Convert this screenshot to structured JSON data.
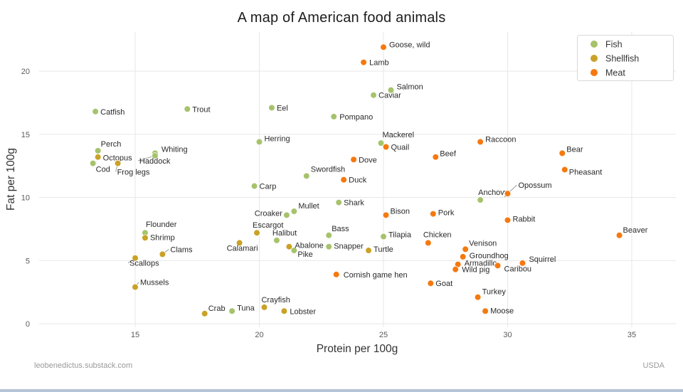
{
  "footer": {
    "left": "leobenedictus.substack.com",
    "right": "USDA"
  },
  "chart_data": {
    "type": "scatter",
    "title": "A map of American food animals",
    "xlabel": "Protein per 100g",
    "ylabel": "Fat per 100g",
    "x_ticks": [
      15,
      20,
      25,
      30,
      35
    ],
    "y_ticks": [
      0,
      5,
      10,
      15,
      20
    ],
    "xlim": [
      11.1,
      36.8
    ],
    "ylim": [
      0,
      23.1
    ],
    "grid": true,
    "legend_position": "top-right",
    "series": [
      {
        "name": "Fish",
        "color": "#a6c36c",
        "points": [
          {
            "label": "Catfish",
            "x": 13.4,
            "y": 16.8,
            "dx": 7,
            "dy": 4
          },
          {
            "label": "Perch",
            "x": 13.5,
            "y": 13.7,
            "dx": 4,
            "dy": -6
          },
          {
            "label": "Cod",
            "x": 13.3,
            "y": 12.7,
            "dx": 4,
            "dy": 12
          },
          {
            "label": "Whiting",
            "x": 15.8,
            "y": 13.5,
            "dx": 9,
            "dy": -2
          },
          {
            "label": "Haddock",
            "x": 15.8,
            "y": 13.3,
            "dx": -22,
            "dy": 11,
            "leader": true
          },
          {
            "label": "Trout",
            "x": 17.1,
            "y": 17.0,
            "dx": 7,
            "dy": 4
          },
          {
            "label": "Eel",
            "x": 20.5,
            "y": 17.1,
            "dx": 7,
            "dy": 4
          },
          {
            "label": "Pompano",
            "x": 23.0,
            "y": 16.4,
            "dx": 8,
            "dy": 4
          },
          {
            "label": "Caviar",
            "x": 24.6,
            "y": 18.1,
            "dx": 7,
            "dy": 4
          },
          {
            "label": "Salmon",
            "x": 25.3,
            "y": 18.5,
            "dx": 8,
            "dy": -1
          },
          {
            "label": "Herring",
            "x": 20.0,
            "y": 14.4,
            "dx": 7,
            "dy": -1
          },
          {
            "label": "Mackerel",
            "x": 24.9,
            "y": 14.3,
            "dx": 2,
            "dy": -8
          },
          {
            "label": "Carp",
            "x": 19.8,
            "y": 10.9,
            "dx": 7,
            "dy": 4
          },
          {
            "label": "Swordfish",
            "x": 21.9,
            "y": 11.7,
            "dx": 6,
            "dy": -6
          },
          {
            "label": "Shark",
            "x": 23.2,
            "y": 9.6,
            "dx": 7,
            "dy": 4
          },
          {
            "label": "Mullet",
            "x": 21.4,
            "y": 8.9,
            "dx": 6,
            "dy": -4
          },
          {
            "label": "Croaker",
            "x": 21.1,
            "y": 8.6,
            "dx": -6,
            "dy": 1,
            "anchor": "end"
          },
          {
            "label": "Flounder",
            "x": 15.4,
            "y": 7.2,
            "dx": 1,
            "dy": -8
          },
          {
            "label": "Bass",
            "x": 22.8,
            "y": 7.0,
            "dx": 4,
            "dy": -6
          },
          {
            "label": "Halibut",
            "x": 20.7,
            "y": 6.6,
            "dx": -6,
            "dy": -7
          },
          {
            "label": "Snapper",
            "x": 22.8,
            "y": 6.1,
            "dx": 7,
            "dy": 3
          },
          {
            "label": "Tilapia",
            "x": 25.0,
            "y": 6.9,
            "dx": 7,
            "dy": 1
          },
          {
            "label": "Pike",
            "x": 21.4,
            "y": 5.8,
            "dx": 5,
            "dy": 9
          },
          {
            "label": "Tuna",
            "x": 18.9,
            "y": 1.0,
            "dx": 7,
            "dy": -1
          },
          {
            "label": "Anchovy",
            "x": 28.9,
            "y": 9.8,
            "dx": -3,
            "dy": -7
          }
        ]
      },
      {
        "name": "Shellfish",
        "color": "#c9a227",
        "points": [
          {
            "label": "Octopus",
            "x": 13.5,
            "y": 13.2,
            "dx": 7,
            "dy": 5
          },
          {
            "label": "Frog legs",
            "x": 14.3,
            "y": 12.7,
            "dx": -1,
            "dy": 16,
            "leader": true
          },
          {
            "label": "Shrimp",
            "x": 15.4,
            "y": 6.8,
            "dx": 7,
            "dy": 3
          },
          {
            "label": "Clams",
            "x": 16.1,
            "y": 5.5,
            "dx": 11,
            "dy": -3,
            "leader": true
          },
          {
            "label": "Scallops",
            "x": 15.0,
            "y": 5.2,
            "dx": -8,
            "dy": 11,
            "leader": true
          },
          {
            "label": "Mussels",
            "x": 15.0,
            "y": 2.9,
            "dx": 7,
            "dy": -3,
            "leader": true
          },
          {
            "label": "Escargot",
            "x": 19.9,
            "y": 7.2,
            "dx": -6,
            "dy": -7
          },
          {
            "label": "Calamari",
            "x": 19.2,
            "y": 6.4,
            "dx": -18,
            "dy": 11
          },
          {
            "label": "Abalone",
            "x": 21.2,
            "y": 6.1,
            "dx": 8,
            "dy": 2
          },
          {
            "label": "Turtle",
            "x": 24.4,
            "y": 5.8,
            "dx": 7,
            "dy": 2
          },
          {
            "label": "Crab",
            "x": 17.8,
            "y": 0.8,
            "dx": 5,
            "dy": -4
          },
          {
            "label": "Crayfish",
            "x": 20.2,
            "y": 1.3,
            "dx": -4,
            "dy": -7
          },
          {
            "label": "Lobster",
            "x": 21.0,
            "y": 1.0,
            "dx": 8,
            "dy": 4
          }
        ]
      },
      {
        "name": "Meat",
        "color": "#f5790f",
        "points": [
          {
            "label": "Goose, wild",
            "x": 25.0,
            "y": 21.9,
            "dx": 8,
            "dy": 0
          },
          {
            "label": "Lamb",
            "x": 24.2,
            "y": 20.7,
            "dx": 8,
            "dy": 4
          },
          {
            "label": "Quail",
            "x": 25.1,
            "y": 14.0,
            "dx": 7,
            "dy": 4
          },
          {
            "label": "Raccoon",
            "x": 28.9,
            "y": 14.4,
            "dx": 7,
            "dy": 0
          },
          {
            "label": "Beef",
            "x": 27.1,
            "y": 13.2,
            "dx": 6,
            "dy": -1
          },
          {
            "label": "Bear",
            "x": 32.2,
            "y": 13.5,
            "dx": 6,
            "dy": -2
          },
          {
            "label": "Pheasant",
            "x": 32.3,
            "y": 12.2,
            "dx": 6,
            "dy": 7
          },
          {
            "label": "Dove",
            "x": 23.8,
            "y": 13.0,
            "dx": 7,
            "dy": 4
          },
          {
            "label": "Duck",
            "x": 23.4,
            "y": 11.4,
            "dx": 7,
            "dy": 4
          },
          {
            "label": "Opossum",
            "x": 30.0,
            "y": 10.3,
            "dx": 15,
            "dy": -8,
            "leader": true
          },
          {
            "label": "Bison",
            "x": 25.1,
            "y": 8.6,
            "dx": 6,
            "dy": -2
          },
          {
            "label": "Pork",
            "x": 27.0,
            "y": 8.7,
            "dx": 7,
            "dy": 2
          },
          {
            "label": "Rabbit",
            "x": 30.0,
            "y": 8.2,
            "dx": 7,
            "dy": 2
          },
          {
            "label": "Beaver",
            "x": 34.5,
            "y": 7.0,
            "dx": 5,
            "dy": -4
          },
          {
            "label": "Chicken",
            "x": 26.8,
            "y": 6.4,
            "dx": -7,
            "dy": -8
          },
          {
            "label": "Venison",
            "x": 28.3,
            "y": 5.9,
            "dx": 5,
            "dy": -5
          },
          {
            "label": "Groundhog",
            "x": 28.2,
            "y": 5.3,
            "dx": 9,
            "dy": 2
          },
          {
            "label": "Armadillo",
            "x": 28.0,
            "y": 4.7,
            "dx": 9,
            "dy": 2
          },
          {
            "label": "Wild pig",
            "x": 27.9,
            "y": 4.3,
            "dx": 9,
            "dy": 4
          },
          {
            "label": "Squirrel",
            "x": 30.6,
            "y": 4.8,
            "dx": 9,
            "dy": -2
          },
          {
            "label": "Caribou",
            "x": 29.6,
            "y": 4.6,
            "dx": 9,
            "dy": 8
          },
          {
            "label": "Cornish game hen",
            "x": 23.1,
            "y": 3.9,
            "dx": 10,
            "dy": 4
          },
          {
            "label": "Goat",
            "x": 26.9,
            "y": 3.2,
            "dx": 7,
            "dy": 4
          },
          {
            "label": "Turkey",
            "x": 28.8,
            "y": 2.1,
            "dx": 6,
            "dy": -4
          },
          {
            "label": "Moose",
            "x": 29.1,
            "y": 1.0,
            "dx": 7,
            "dy": 3
          }
        ]
      }
    ]
  }
}
